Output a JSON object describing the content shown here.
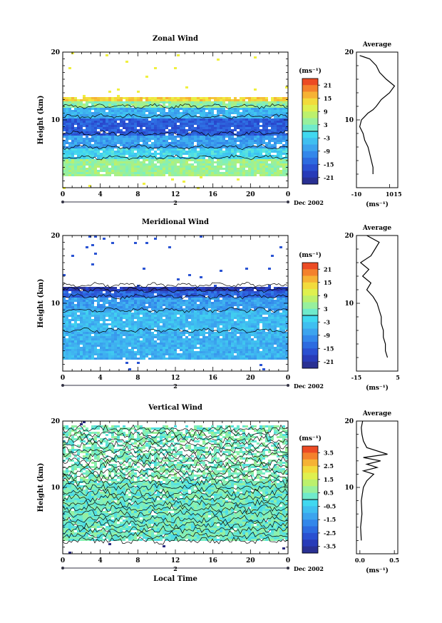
{
  "chart_data": [
    {
      "type": "heatmap",
      "title": "Zonal Wind",
      "xlabel": "",
      "ylabel": "Height (km)",
      "xlim": [
        0,
        24
      ],
      "ylim": [
        0,
        20
      ],
      "xticks": [
        "0",
        "4",
        "8",
        "12",
        "16",
        "20",
        "0"
      ],
      "yticks": [
        "10",
        "20"
      ],
      "day_label": "2",
      "date_label": "Dec 2002",
      "colorbar": {
        "unit": "(ms⁻¹)",
        "ticks": [
          "21",
          "15",
          "9",
          "3",
          "-3",
          "-9",
          "-15",
          "-21"
        ],
        "range": [
          -24,
          24
        ]
      },
      "profile": {
        "title": "Average",
        "xlabel": "(ms⁻¹)",
        "xticks": [
          "-10",
          "10",
          "15"
        ],
        "xlim": [
          -10,
          15
        ],
        "yticks": [
          "10",
          "20"
        ],
        "heights": [
          2,
          3,
          4,
          5,
          6,
          7,
          8,
          9,
          10,
          10.5,
          11,
          11.5,
          12,
          13,
          14,
          15,
          16,
          17,
          18,
          19,
          19.5
        ],
        "values": [
          0,
          0,
          -1,
          -2,
          -3,
          -5,
          -6,
          -8,
          -7,
          -5,
          -3,
          0,
          2,
          5,
          10,
          13,
          8,
          4,
          2,
          -2,
          -8
        ]
      },
      "bands": [
        {
          "h": [
            2,
            4.5
          ],
          "value": 5
        },
        {
          "h": [
            4.5,
            6
          ],
          "value": -2
        },
        {
          "h": [
            6,
            8
          ],
          "value": -8
        },
        {
          "h": [
            8,
            10.5
          ],
          "value": -15
        },
        {
          "h": [
            10.5,
            12
          ],
          "value": -6
        },
        {
          "h": [
            12,
            13
          ],
          "value": 4
        },
        {
          "h": [
            13,
            13.5
          ],
          "value": 14
        }
      ]
    },
    {
      "type": "heatmap",
      "title": "Meridional Wind",
      "xlabel": "",
      "ylabel": "Height (km)",
      "xlim": [
        0,
        24
      ],
      "ylim": [
        0,
        20
      ],
      "xticks": [
        "0",
        "4",
        "8",
        "12",
        "16",
        "20",
        "0"
      ],
      "yticks": [
        "10",
        "20"
      ],
      "day_label": "2",
      "date_label": "Dec 2002",
      "colorbar": {
        "unit": "(ms⁻¹)",
        "ticks": [
          "21",
          "15",
          "9",
          "3",
          "-3",
          "-9",
          "-15",
          "-21"
        ],
        "range": [
          -24,
          24
        ]
      },
      "profile": {
        "title": "Average",
        "xlabel": "(ms⁻¹)",
        "xticks": [
          "-15",
          "5"
        ],
        "xlim": [
          -15,
          5
        ],
        "yticks": [
          "10",
          "20"
        ],
        "heights": [
          2,
          3,
          4,
          5,
          6,
          7,
          8,
          9,
          10,
          11,
          12,
          13,
          14,
          15,
          16,
          17,
          18,
          19,
          20
        ],
        "values": [
          0,
          -1,
          -1,
          -2,
          -2,
          -3,
          -3,
          -4,
          -5,
          -7,
          -10,
          -8,
          -12,
          -9,
          -13,
          -8,
          -6,
          -4,
          -10
        ]
      },
      "bands": [
        {
          "h": [
            2,
            6
          ],
          "value": -6
        },
        {
          "h": [
            6,
            9
          ],
          "value": -5
        },
        {
          "h": [
            9,
            11
          ],
          "value": -8
        },
        {
          "h": [
            11,
            12
          ],
          "value": -14
        },
        {
          "h": [
            12,
            12.7
          ],
          "value": -20
        }
      ]
    },
    {
      "type": "heatmap",
      "title": "Vertical Wind",
      "xlabel": "Local Time",
      "ylabel": "Height (km)",
      "xlim": [
        0,
        24
      ],
      "ylim": [
        0,
        20
      ],
      "xticks": [
        "0",
        "4",
        "8",
        "12",
        "16",
        "20",
        "0"
      ],
      "yticks": [
        "10",
        "20"
      ],
      "day_label": "2",
      "date_label": "Dec 2002",
      "colorbar": {
        "unit": "(ms⁻¹)",
        "ticks": [
          "3.5",
          "2.5",
          "1.5",
          "0.5",
          "-0.5",
          "-1.5",
          "-2.5",
          "-3.5"
        ],
        "range": [
          -4,
          4
        ]
      },
      "profile": {
        "title": "Average",
        "xlabel": "(ms⁻¹)",
        "xticks": [
          "0.0",
          "0.5"
        ],
        "xlim": [
          -0.05,
          0.55
        ],
        "yticks": [
          "10",
          "20"
        ],
        "heights": [
          2,
          4,
          6,
          8,
          10,
          11,
          12,
          12.5,
          13,
          13.5,
          14,
          14.5,
          15,
          16,
          17,
          18,
          19,
          20
        ],
        "values": [
          0.02,
          0.01,
          0.03,
          0.02,
          0.05,
          0.1,
          0.2,
          0.05,
          0.25,
          0.1,
          0.3,
          0.05,
          0.4,
          0.1,
          0.05,
          0.03,
          0.02,
          0.04
        ]
      },
      "bands": [
        {
          "h": [
            2,
            11
          ],
          "value": 0.3
        },
        {
          "h": [
            11,
            19.5
          ],
          "value": 0.4
        }
      ]
    }
  ]
}
